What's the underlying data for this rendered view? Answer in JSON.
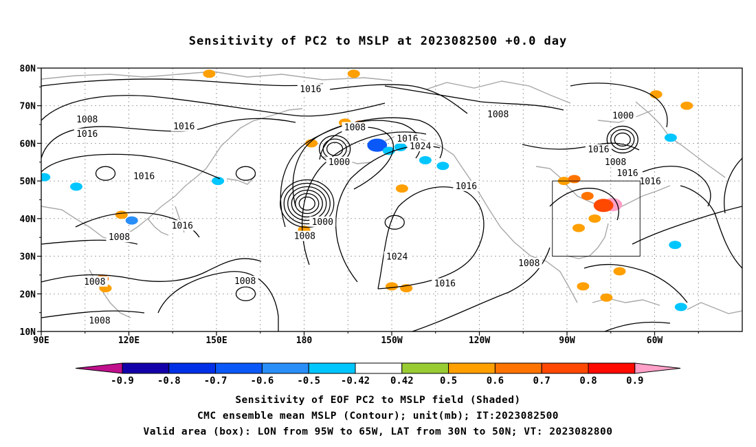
{
  "title": "Sensitivity of PC2 to MSLP at 2023082500 +0.0 day",
  "map": {
    "lat_labels": [
      "80N",
      "70N",
      "60N",
      "50N",
      "40N",
      "30N",
      "20N",
      "10N"
    ],
    "lon_labels": [
      "90E",
      "120E",
      "150E",
      "180",
      "150W",
      "120W",
      "90W",
      "60W"
    ],
    "contour_labels": [
      {
        "text": "1016",
        "lon": -177.8,
        "lat": 74.3
      },
      {
        "text": "1008",
        "lon": -113.6,
        "lat": 67.7
      },
      {
        "text": "1000",
        "lon": -70.8,
        "lat": 67.3
      },
      {
        "text": "1008",
        "lon": 105.7,
        "lat": 66.3
      },
      {
        "text": "1016",
        "lon": 105.7,
        "lat": 62.5
      },
      {
        "text": "1016",
        "lon": 138.9,
        "lat": 64.5
      },
      {
        "text": "1008",
        "lon": -162.6,
        "lat": 64.2
      },
      {
        "text": "1016",
        "lon": -144.6,
        "lat": 61.2
      },
      {
        "text": "1024",
        "lon": -140.2,
        "lat": 59.2
      },
      {
        "text": "1016",
        "lon": -79.2,
        "lat": 58.3
      },
      {
        "text": "1000",
        "lon": -168.0,
        "lat": 55.0
      },
      {
        "text": "1008",
        "lon": -73.4,
        "lat": 55.0
      },
      {
        "text": "1016",
        "lon": -69.3,
        "lat": 52.0
      },
      {
        "text": "1016",
        "lon": -61.5,
        "lat": 49.8
      },
      {
        "text": "1016",
        "lon": 125.2,
        "lat": 51.2
      },
      {
        "text": "1016",
        "lon": -124.5,
        "lat": 48.6
      },
      {
        "text": "1016",
        "lon": 138.3,
        "lat": 38.1
      },
      {
        "text": "1000",
        "lon": -173.7,
        "lat": 39.1
      },
      {
        "text": "1008",
        "lon": -179.8,
        "lat": 35.3
      },
      {
        "text": "1008",
        "lon": 116.7,
        "lat": 35.0
      },
      {
        "text": "1024",
        "lon": -148.2,
        "lat": 29.8
      },
      {
        "text": "1008",
        "lon": -103.0,
        "lat": 28.1
      },
      {
        "text": "1008",
        "lon": 108.3,
        "lat": 23.2
      },
      {
        "text": "1008",
        "lon": 159.8,
        "lat": 23.3
      },
      {
        "text": "1016",
        "lon": -131.8,
        "lat": 22.7
      },
      {
        "text": "1008",
        "lon": 110.0,
        "lat": 12.8
      }
    ],
    "lows": [
      {
        "lon": -179.0,
        "lat": 44.0,
        "rings": 6
      },
      {
        "lon": -169.5,
        "lat": 58.5,
        "rings": 3
      },
      {
        "lon": -71.0,
        "lat": 61.0,
        "rings": 3
      }
    ],
    "highs": [
      {
        "lon": -149.0,
        "lat": 39.0
      },
      {
        "lon": 160.0,
        "lat": 20.0
      },
      {
        "lon": 112.0,
        "lat": 52.0
      },
      {
        "lon": 160.0,
        "lat": 52.0
      }
    ],
    "shaded_patches": [
      {
        "lon": -74.5,
        "lat": 43.7,
        "value": 0.9
      },
      {
        "lon": -77.5,
        "lat": 43.5,
        "value": 0.7
      },
      {
        "lon": -80.5,
        "lat": 40.0,
        "value": 0.5
      },
      {
        "lon": -86.0,
        "lat": 37.5,
        "value": 0.5
      },
      {
        "lon": -83.0,
        "lat": 46.0,
        "value": 0.6
      },
      {
        "lon": -91.0,
        "lat": 50.0,
        "value": 0.5
      },
      {
        "lon": -87.5,
        "lat": 50.5,
        "value": 0.6
      },
      {
        "lon": -155.0,
        "lat": 59.5,
        "value": -0.7
      },
      {
        "lon": -151.0,
        "lat": 58.0,
        "value": -0.5
      },
      {
        "lon": -147.0,
        "lat": 59.0,
        "value": -0.5
      },
      {
        "lon": -177.5,
        "lat": 60.0,
        "value": 0.5
      },
      {
        "lon": -166.0,
        "lat": 65.5,
        "value": 0.5
      },
      {
        "lon": -161.0,
        "lat": 65.0,
        "value": 0.6
      },
      {
        "lon": -150.0,
        "lat": 22.0,
        "value": 0.5
      },
      {
        "lon": -145.0,
        "lat": 21.5,
        "value": 0.5
      },
      {
        "lon": -180.0,
        "lat": 37.0,
        "value": 0.5
      },
      {
        "lon": 147.5,
        "lat": 78.5,
        "value": 0.5
      },
      {
        "lon": -163.0,
        "lat": 78.5,
        "value": 0.5
      },
      {
        "lon": -59.5,
        "lat": 73.0,
        "value": 0.5
      },
      {
        "lon": -49.0,
        "lat": 70.0,
        "value": 0.5
      },
      {
        "lon": 111.0,
        "lat": 24.0,
        "value": 0.6
      },
      {
        "lon": 112.0,
        "lat": 21.5,
        "value": 0.5
      },
      {
        "lon": 121.0,
        "lat": 39.5,
        "value": -0.6
      },
      {
        "lon": 117.5,
        "lat": 41.0,
        "value": 0.5
      },
      {
        "lon": 102.0,
        "lat": 48.5,
        "value": -0.5
      },
      {
        "lon": 91.0,
        "lat": 51.0,
        "value": -0.5
      },
      {
        "lon": 150.5,
        "lat": 50.0,
        "value": -0.5
      },
      {
        "lon": -132.5,
        "lat": 54.0,
        "value": -0.5
      },
      {
        "lon": -138.5,
        "lat": 55.5,
        "value": -0.5
      },
      {
        "lon": -84.5,
        "lat": 22.0,
        "value": 0.5
      },
      {
        "lon": -76.5,
        "lat": 19.0,
        "value": 0.5
      },
      {
        "lon": -51.0,
        "lat": 16.5,
        "value": -0.5
      },
      {
        "lon": -53.0,
        "lat": 33.0,
        "value": -0.5
      },
      {
        "lon": -54.5,
        "lat": 61.5,
        "value": -0.5
      },
      {
        "lon": -72.0,
        "lat": 26.0,
        "value": 0.5
      },
      {
        "lon": -146.5,
        "lat": 48.0,
        "value": 0.5
      }
    ],
    "valid_box": {
      "lon_min": -95,
      "lon_max": -65,
      "lat_min": 30,
      "lat_max": 50
    }
  },
  "colorbar": {
    "labels": [
      "-0.9",
      "-0.8",
      "-0.7",
      "-0.6",
      "-0.5",
      "-0.42",
      "0.42",
      "0.5",
      "0.6",
      "0.7",
      "0.8",
      "0.9"
    ],
    "colors": [
      "#1400a8",
      "#0030e6",
      "#0a58f8",
      "#2a8ef8",
      "#00c6ff",
      "#ffffff",
      "#99cc33",
      "#ff9f00",
      "#ff7300",
      "#ff4800",
      "#ff0a00"
    ],
    "under_color": "#c0108c",
    "over_color": "#ffa0c8"
  },
  "captions": [
    "Sensitivity of EOF PC2 to MSLP field (Shaded)",
    "CMC ensemble mean MSLP (Contour); unit(mb); IT:2023082500",
    "Valid area (box): LON from 95W to 65W, LAT from 30N to 50N; VT: 2023082800"
  ]
}
